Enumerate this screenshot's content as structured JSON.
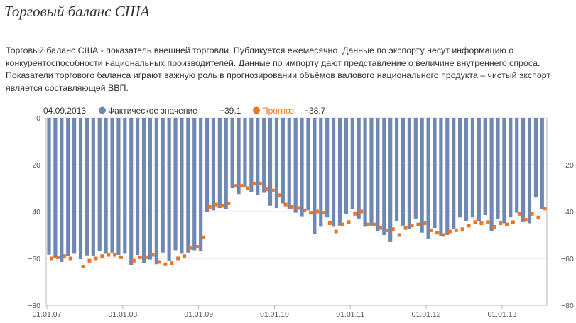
{
  "page": {
    "title": "Торговый баланс США",
    "description": "Торговый баланс США - показатель внешней торговли. Публикуется ежемесячно. Данные по экспорту несут информацию о конкурентоспособности национальных производителей. Данные по импорту дают представление о величине внутреннего спроса. Показатели торгового баланса играют важную роль в прогнозировании объёмов валового национального продукта – чистый экспорт является составляющей ВВП."
  },
  "legend": {
    "date": "04.09.2013",
    "actual_label": "Фактическое значение",
    "actual_value": "−39.1",
    "forecast_label": "Прогноз",
    "forecast_value": "−38.7"
  },
  "colors": {
    "actual": "#6f87b3",
    "forecast": "#f07321",
    "grid": "#e2e2e2",
    "axis": "#b5b5b5"
  },
  "chart_data": {
    "type": "bar",
    "ylim": [
      -80,
      0
    ],
    "yticks": [
      0,
      -20,
      -40,
      -60,
      -80
    ],
    "ytick_labels_left": [
      "0",
      "−20",
      "−40",
      "−60",
      "−80"
    ],
    "ytick_labels_right": [
      "",
      "−20",
      "−40",
      "−60",
      "−80"
    ],
    "xtick_labels": [
      "01.01.07",
      "01.01.08",
      "01.01.09",
      "01.01.10",
      "01.01.11",
      "01.01.12",
      "01.01.13"
    ],
    "xtick_month_index": [
      0,
      12,
      24,
      36,
      48,
      60,
      72
    ],
    "start_month": "2007-01",
    "series": [
      {
        "name": "Фактическое значение",
        "kind": "bar",
        "values": [
          -58.4,
          -60.0,
          -61.5,
          -59.0,
          -58.0,
          -60.3,
          -58.7,
          -59.0,
          -57.0,
          -58.0,
          -57.5,
          -58.5,
          -58.0,
          -63.0,
          -58.5,
          -62.0,
          -60.5,
          -62.5,
          -57.5,
          -61.0,
          -56.5,
          -58.0,
          -57.5,
          -56.5,
          -57.0,
          -40.0,
          -39.5,
          -38.5,
          -39.0,
          -30.0,
          -32.5,
          -29.5,
          -31.5,
          -33.0,
          -32.0,
          -37.5,
          -38.5,
          -36.5,
          -39.0,
          -40.5,
          -42.0,
          -39.5,
          -49.5,
          -46.5,
          -42.5,
          -46.5,
          -46.0,
          -41.0,
          -39.0,
          -43.0,
          -46.5,
          -46.0,
          -48.5,
          -50.0,
          -53.0,
          -44.0,
          -46.0,
          -47.5,
          -43.0,
          -49.0,
          -51.5,
          -47.0,
          -50.5,
          -50.0,
          -47.5,
          -42.5,
          -44.0,
          -42.5,
          -44.0,
          -41.5,
          -48.5,
          -43.0,
          -45.0,
          -42.5,
          -40.5,
          -44.5,
          -45.0,
          -34.0,
          -39.1
        ]
      },
      {
        "name": "Прогноз",
        "kind": "point",
        "values": [
          -60.0,
          -59.5,
          -59.0,
          -60.0,
          null,
          -63.5,
          -61.0,
          -60.0,
          -59.0,
          -58.5,
          -58.5,
          -59.5,
          null,
          -61.0,
          -59.5,
          -59.5,
          -58.5,
          -61.5,
          -62.5,
          -62.0,
          -60.0,
          -59.0,
          -55.5,
          -55.0,
          -51.0,
          -38.0,
          -37.0,
          -37.5,
          -36.5,
          -29.0,
          -29.0,
          -30.0,
          -28.0,
          -28.0,
          -30.5,
          -31.0,
          -33.0,
          -37.0,
          -38.0,
          -38.5,
          -39.5,
          -40.5,
          -40.0,
          -40.5,
          -45.0,
          -48.5,
          -45.5,
          -44.5,
          -41.0,
          -40.0,
          -45.5,
          -45.5,
          -47.0,
          -48.0,
          -47.5,
          -50.0,
          -47.0,
          -46.0,
          -45.5,
          -45.0,
          -48.0,
          -49.0,
          -50.0,
          -48.5,
          -48.0,
          -47.5,
          -46.0,
          -44.5,
          -45.0,
          -44.5,
          -46.5,
          -45.0,
          -45.5,
          -44.5,
          -41.0,
          -43.5,
          -41.0,
          -42.5,
          -38.7
        ]
      }
    ]
  }
}
